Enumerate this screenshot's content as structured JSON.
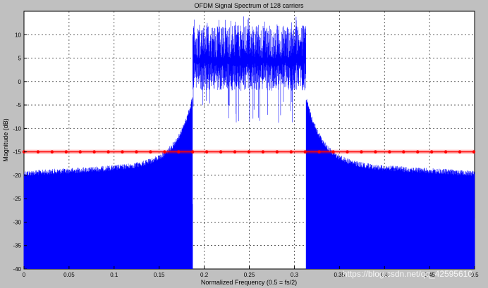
{
  "chart_data": {
    "type": "line",
    "title": "OFDM Signal Spectrum of 128 carriers",
    "xlabel": "Normalized Frequency (0.5 = fs/2)",
    "ylabel": "Magnitude (dB)",
    "xlim": [
      0,
      0.5
    ],
    "ylim": [
      -40,
      15
    ],
    "x_ticks": [
      "0",
      "0.05",
      "0.1",
      "0.15",
      "0.2",
      "0.25",
      "0.3",
      "0.35",
      "0.4",
      "0.45",
      "0.5"
    ],
    "y_ticks": [
      "10",
      "5",
      "0",
      "-5",
      "-10",
      "-15",
      "-20",
      "-25",
      "-30",
      "-35",
      "-40"
    ],
    "grid": "dashed",
    "background_color": "#c0c0c0",
    "plot_color": "#ffffff",
    "series": [
      {
        "color": "#0000ff",
        "band": {
          "in_band_range": [
            0.187,
            0.313
          ],
          "in_band_level_db": [
            5,
            12
          ],
          "edge_peak_db": -3,
          "outer_envelope_db": [
            -17,
            -19
          ],
          "floor_db": -40
        }
      },
      {
        "color": "#ff0000",
        "marker": "circle",
        "level_db": -15,
        "marker_step": 0.0156
      }
    ],
    "watermark": "https://blog.csdn.net/qq_42595610"
  }
}
